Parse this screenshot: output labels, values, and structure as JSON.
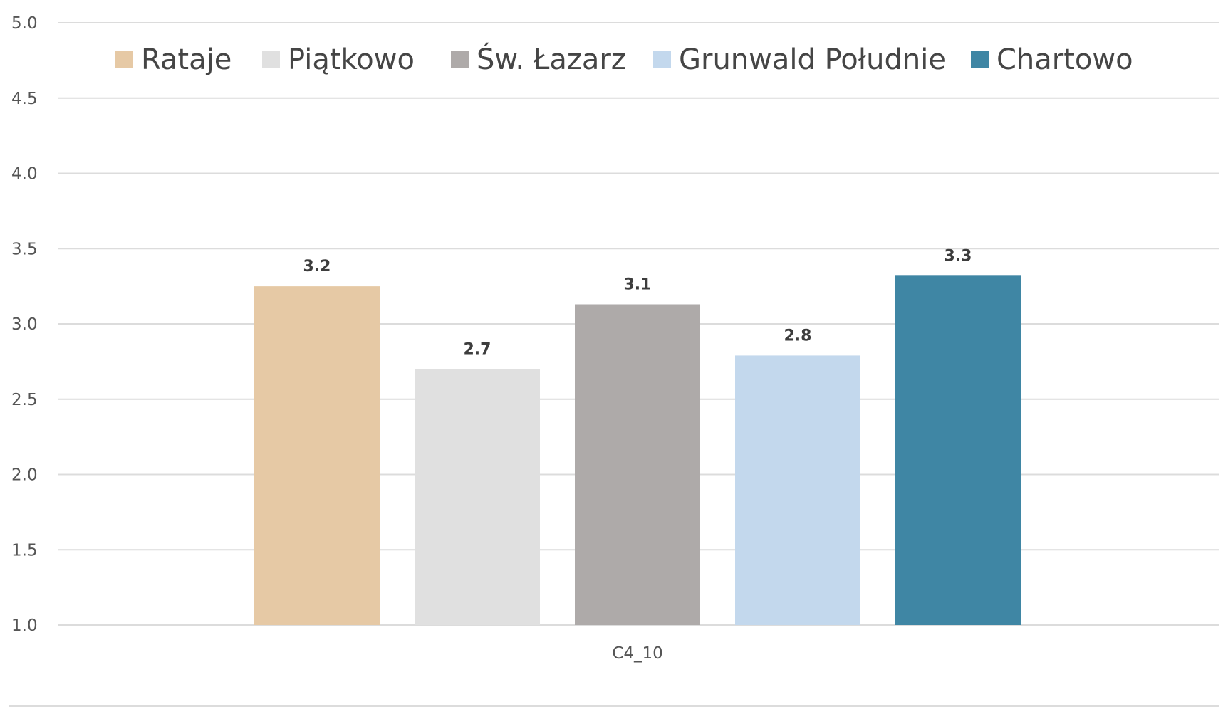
{
  "chart_data": {
    "type": "bar",
    "categories": [
      "C4_10"
    ],
    "series": [
      {
        "name": "Rataje",
        "values": [
          3.25
        ],
        "label": "3.2",
        "color": "#e6c9a5"
      },
      {
        "name": "Piątkowo",
        "values": [
          2.7
        ],
        "label": "2.7",
        "color": "#e0e0e0"
      },
      {
        "name": "Św. Łazarz",
        "values": [
          3.13
        ],
        "label": "3.1",
        "color": "#aeaaa9"
      },
      {
        "name": "Grunwald Południe",
        "values": [
          2.79
        ],
        "label": "2.8",
        "color": "#c3d8ed"
      },
      {
        "name": "Chartowo",
        "values": [
          3.32
        ],
        "label": "3.3",
        "color": "#3f86a4"
      }
    ],
    "ylim": [
      1.0,
      5.0
    ],
    "yticks": [
      "1.0",
      "1.5",
      "2.0",
      "2.5",
      "3.0",
      "3.5",
      "4.0",
      "4.5",
      "5.0"
    ],
    "legend_position": "top",
    "grid": true
  }
}
